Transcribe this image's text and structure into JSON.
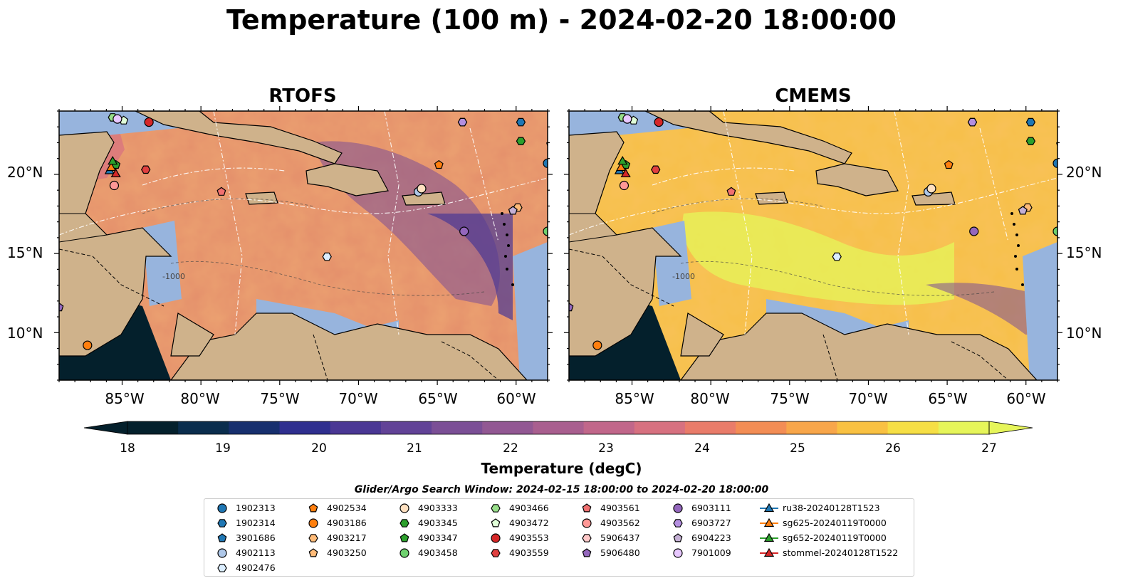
{
  "title": "Temperature (100 m) - 2024-02-20 18:00:00",
  "panels": [
    {
      "title": "RTOFS"
    },
    {
      "title": "CMEMS"
    }
  ],
  "lat_ticks": [
    "20°N",
    "15°N",
    "10°N"
  ],
  "lon_ticks": [
    "85°W",
    "80°W",
    "75°W",
    "70°W",
    "65°W",
    "60°W"
  ],
  "colorbar": {
    "label": "Temperature (degC)",
    "ticks": [
      "18",
      "19",
      "20",
      "21",
      "22",
      "23",
      "24",
      "25",
      "26",
      "27"
    ],
    "colormap": "thermal",
    "colors": [
      "#04202c",
      "#0a2d4d",
      "#172f6e",
      "#2f2f8f",
      "#4a3794",
      "#624397",
      "#7b4f96",
      "#925893",
      "#a95f8f",
      "#c1678a",
      "#d77180",
      "#e97c6a",
      "#f38d55",
      "#f8a64a",
      "#f9c142",
      "#f6df45",
      "#e6f55a"
    ]
  },
  "search_window": "Glider/Argo Search Window: 2024-02-15 18:00:00 to 2024-02-20 18:00:00",
  "contour_labels": [
    "-1000",
    "-1000"
  ],
  "legend": [
    {
      "label": "1902313",
      "marker": "circle",
      "color": "#1f77b4"
    },
    {
      "label": "1902314",
      "marker": "hexagon",
      "color": "#1f77b4"
    },
    {
      "label": "3901686",
      "marker": "pentagon",
      "color": "#1f77b4"
    },
    {
      "label": "4902113",
      "marker": "circle",
      "color": "#aec7e8"
    },
    {
      "label": "4902476",
      "marker": "hexagon",
      "color": "#dbeeff"
    },
    {
      "label": "4902534",
      "marker": "pentagon",
      "color": "#ff7f0e"
    },
    {
      "label": "4903186",
      "marker": "circle",
      "color": "#ff7f0e"
    },
    {
      "label": "4903217",
      "marker": "hexagon",
      "color": "#ffbb78"
    },
    {
      "label": "4903250",
      "marker": "pentagon",
      "color": "#ffbb78"
    },
    {
      "label": "4903333",
      "marker": "circle",
      "color": "#ffe0c0"
    },
    {
      "label": "4903345",
      "marker": "hexagon",
      "color": "#2ca02c"
    },
    {
      "label": "4903347",
      "marker": "pentagon",
      "color": "#2ca02c"
    },
    {
      "label": "4903458",
      "marker": "circle",
      "color": "#6fd16f"
    },
    {
      "label": "4903466",
      "marker": "hexagon",
      "color": "#98df8a"
    },
    {
      "label": "4903472",
      "marker": "pentagon",
      "color": "#e0ffd8"
    },
    {
      "label": "4903553",
      "marker": "circle",
      "color": "#d62728"
    },
    {
      "label": "4903559",
      "marker": "hexagon",
      "color": "#e04040"
    },
    {
      "label": "4903561",
      "marker": "pentagon",
      "color": "#f07070"
    },
    {
      "label": "4903562",
      "marker": "circle",
      "color": "#ff9896"
    },
    {
      "label": "5906437",
      "marker": "hexagon",
      "color": "#ffc8c8"
    },
    {
      "label": "5906480",
      "marker": "pentagon",
      "color": "#9467bd"
    },
    {
      "label": "6903111",
      "marker": "circle",
      "color": "#9467bd"
    },
    {
      "label": "6903727",
      "marker": "hexagon",
      "color": "#b48fe0"
    },
    {
      "label": "6904223",
      "marker": "pentagon",
      "color": "#c5b0d5"
    },
    {
      "label": "7901009",
      "marker": "circle",
      "color": "#e8c8ff"
    },
    {
      "label": "ru38-20240128T1523",
      "marker": "triangle-line",
      "color": "#1f77b4"
    },
    {
      "label": "sg625-20240119T0000",
      "marker": "triangle-line",
      "color": "#ff7f0e"
    },
    {
      "label": "sg652-20240119T0000",
      "marker": "triangle-line",
      "color": "#2ca02c"
    },
    {
      "label": "stommel-20240128T1522",
      "marker": "triangle-line",
      "color": "#d62728"
    }
  ],
  "platforms": [
    {
      "id": "1902313",
      "lon": -58.0,
      "lat": 20.7
    },
    {
      "id": "1902314",
      "lon": -59.7,
      "lat": 23.3
    },
    {
      "id": "3901686",
      "lon": -57.8,
      "lat": 21.9
    },
    {
      "id": "4902113",
      "lon": -66.2,
      "lat": 18.9
    },
    {
      "id": "4902476",
      "lon": -72.0,
      "lat": 14.8
    },
    {
      "id": "4902534",
      "lon": -64.9,
      "lat": 20.6
    },
    {
      "id": "4903186",
      "lon": -87.2,
      "lat": 9.2
    },
    {
      "id": "4903217",
      "lon": -59.9,
      "lat": 17.9
    },
    {
      "id": "4903250",
      "lon": -60.2,
      "lat": 17.7
    },
    {
      "id": "4903333",
      "lon": -66.0,
      "lat": 19.1
    },
    {
      "id": "4903345",
      "lon": -59.7,
      "lat": 22.1
    },
    {
      "id": "4903347",
      "lon": -85.4,
      "lat": 20.6
    },
    {
      "id": "4903458",
      "lon": -58.0,
      "lat": 16.4
    },
    {
      "id": "4903466",
      "lon": -85.6,
      "lat": 23.6
    },
    {
      "id": "4903472",
      "lon": -84.9,
      "lat": 23.4
    },
    {
      "id": "4903553",
      "lon": -83.3,
      "lat": 23.3
    },
    {
      "id": "4903559",
      "lon": -83.5,
      "lat": 20.3
    },
    {
      "id": "4903561",
      "lon": -78.7,
      "lat": 18.9
    },
    {
      "id": "4903562",
      "lon": -85.5,
      "lat": 19.3
    },
    {
      "id": "5906437",
      "lon": -63.4,
      "lat": 23.3
    },
    {
      "id": "5906480",
      "lon": -89.0,
      "lat": 11.6
    },
    {
      "id": "6903111",
      "lon": -63.3,
      "lat": 16.4
    },
    {
      "id": "6903727",
      "lon": -63.4,
      "lat": 23.3
    },
    {
      "id": "6904223",
      "lon": -60.2,
      "lat": 17.7
    },
    {
      "id": "7901009",
      "lon": -85.3,
      "lat": 23.5
    }
  ],
  "gliders": [
    {
      "id": "ru38-20240128T1523",
      "lon": -85.8,
      "lat": 20.2
    },
    {
      "id": "sg625-20240119T0000",
      "lon": -85.7,
      "lat": 20.4
    },
    {
      "id": "sg652-20240119T0000",
      "lon": -85.6,
      "lat": 20.8
    },
    {
      "id": "stommel-20240128T1522",
      "lon": -85.4,
      "lat": 20.0
    }
  ],
  "extent": {
    "lon": [
      -89.0,
      -58.0
    ],
    "lat": [
      7.0,
      24.0
    ]
  }
}
